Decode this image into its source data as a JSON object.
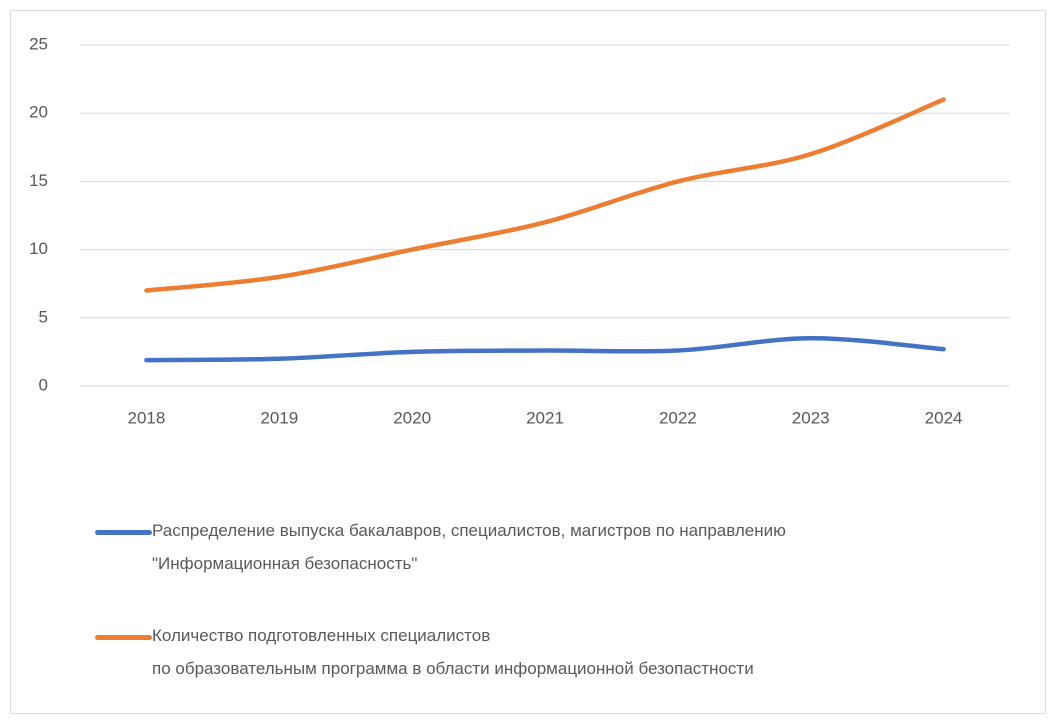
{
  "chart_data": {
    "type": "line",
    "categories": [
      "2018",
      "2019",
      "2020",
      "2021",
      "2022",
      "2023",
      "2024"
    ],
    "series": [
      {
        "name": "Распределение выпуска бакалавров, специалистов, магистров по направлению\n\"Информационная безопасность\"",
        "color": "#4472c4",
        "values": [
          1.9,
          2.0,
          2.5,
          2.6,
          2.6,
          3.5,
          2.7
        ]
      },
      {
        "name": "Количество подготовленных специалистов\nпо образовательным программа в области информационной безопастности",
        "color": "#ed7d31",
        "values": [
          7,
          8,
          10,
          12,
          15,
          17,
          21
        ]
      }
    ],
    "ylim": [
      0,
      25
    ],
    "yticks": [
      0,
      5,
      10,
      15,
      20,
      25
    ],
    "grid": true,
    "smooth": true,
    "legend": "bottom"
  }
}
